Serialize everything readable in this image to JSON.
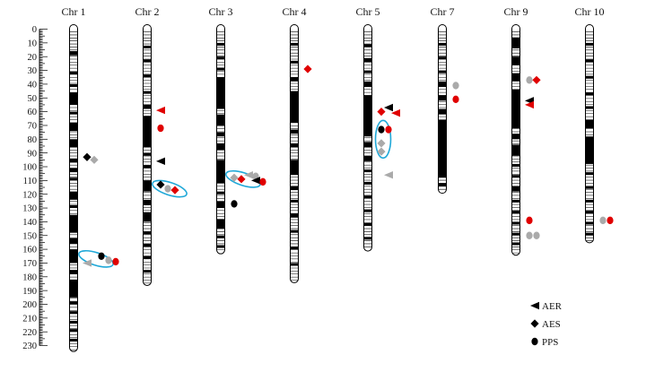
{
  "scale": {
    "min": 0,
    "max": 230,
    "step": 10,
    "labels": [
      "0",
      "10",
      "20",
      "30",
      "40",
      "50",
      "60",
      "70",
      "80",
      "90",
      "100",
      "110",
      "120",
      "130",
      "140",
      "150",
      "160",
      "170",
      "180",
      "190",
      "200",
      "210",
      "220",
      "230"
    ]
  },
  "colors": {
    "chromosome_outline": "#000000",
    "band": "#000000",
    "red": "#e00000",
    "black": "#000000",
    "gray": "#aaaaaa",
    "cluster_ring": "#1fa8d8"
  },
  "chromosomes": [
    {
      "name": "Chr 1",
      "length_cm": 233,
      "bands": [
        [
          16,
          19
        ],
        [
          31,
          33
        ],
        [
          40,
          42
        ],
        [
          46,
          55
        ],
        [
          60,
          62
        ],
        [
          68,
          74
        ],
        [
          80,
          86
        ],
        [
          94,
          97
        ],
        [
          101,
          104
        ],
        [
          108,
          110
        ],
        [
          118,
          124
        ],
        [
          128,
          130
        ],
        [
          135,
          148
        ],
        [
          152,
          156
        ],
        [
          160,
          170
        ],
        [
          175,
          178
        ],
        [
          182,
          195
        ],
        [
          198,
          200
        ],
        [
          205,
          207
        ],
        [
          212,
          214
        ],
        [
          218,
          220
        ],
        [
          225,
          227
        ]
      ]
    },
    {
      "name": "Chr 2",
      "length_cm": 185,
      "bands": [
        [
          12,
          14
        ],
        [
          22,
          24
        ],
        [
          33,
          35
        ],
        [
          45,
          47
        ],
        [
          55,
          58
        ],
        [
          63,
          86
        ],
        [
          90,
          92
        ],
        [
          99,
          101
        ],
        [
          110,
          118
        ],
        [
          124,
          128
        ],
        [
          133,
          140
        ],
        [
          147,
          149
        ],
        [
          156,
          158
        ],
        [
          165,
          167
        ],
        [
          175,
          177
        ]
      ]
    },
    {
      "name": "Chr 3",
      "length_cm": 162,
      "bands": [
        [
          10,
          12
        ],
        [
          20,
          22
        ],
        [
          28,
          30
        ],
        [
          35,
          58
        ],
        [
          62,
          70
        ],
        [
          75,
          78
        ],
        [
          83,
          88
        ],
        [
          95,
          112
        ],
        [
          118,
          120
        ],
        [
          125,
          130
        ],
        [
          138,
          145
        ],
        [
          150,
          152
        ],
        [
          157,
          159
        ]
      ]
    },
    {
      "name": "Chr 4",
      "length_cm": 183,
      "bands": [
        [
          10,
          12
        ],
        [
          23,
          25
        ],
        [
          35,
          38
        ],
        [
          45,
          68
        ],
        [
          73,
          76
        ],
        [
          83,
          86
        ],
        [
          95,
          106
        ],
        [
          114,
          117
        ],
        [
          124,
          126
        ],
        [
          134,
          137
        ],
        [
          146,
          148
        ],
        [
          158,
          160
        ],
        [
          170,
          172
        ]
      ]
    },
    {
      "name": "Chr 5",
      "length_cm": 160,
      "bands": [
        [
          11,
          13
        ],
        [
          21,
          24
        ],
        [
          30,
          32
        ],
        [
          38,
          42
        ],
        [
          48,
          78
        ],
        [
          82,
          86
        ],
        [
          92,
          96
        ],
        [
          102,
          104
        ],
        [
          111,
          113
        ],
        [
          121,
          123
        ],
        [
          131,
          133
        ],
        [
          141,
          143
        ],
        [
          151,
          153
        ]
      ]
    },
    {
      "name": "Chr 7",
      "length_cm": 118,
      "bands": [
        [
          10,
          12
        ],
        [
          20,
          22
        ],
        [
          30,
          32
        ],
        [
          38,
          42
        ],
        [
          48,
          52
        ],
        [
          58,
          62
        ],
        [
          66,
          108
        ],
        [
          112,
          114
        ]
      ]
    },
    {
      "name": "Chr 9",
      "length_cm": 163,
      "bands": [
        [
          6,
          14
        ],
        [
          20,
          26
        ],
        [
          32,
          38
        ],
        [
          44,
          72
        ],
        [
          76,
          80
        ],
        [
          84,
          92
        ],
        [
          98,
          100
        ],
        [
          106,
          108
        ],
        [
          114,
          118
        ],
        [
          124,
          126
        ],
        [
          132,
          134
        ],
        [
          140,
          142
        ],
        [
          148,
          150
        ],
        [
          155,
          157
        ]
      ]
    },
    {
      "name": "Chr 10",
      "length_cm": 154,
      "bands": [
        [
          10,
          12
        ],
        [
          22,
          24
        ],
        [
          34,
          36
        ],
        [
          46,
          48
        ],
        [
          56,
          58
        ],
        [
          66,
          72
        ],
        [
          78,
          98
        ],
        [
          104,
          106
        ],
        [
          114,
          116
        ],
        [
          124,
          126
        ],
        [
          132,
          134
        ],
        [
          140,
          142
        ],
        [
          148,
          150
        ]
      ]
    }
  ],
  "markers": [
    {
      "chr": 0,
      "pos": 93,
      "shape": "diamond",
      "color": "black",
      "side": 1
    },
    {
      "chr": 0,
      "pos": 95,
      "shape": "diamond",
      "color": "gray",
      "side": 2
    },
    {
      "chr": 0,
      "pos": 165,
      "shape": "circle",
      "color": "black",
      "side": 3
    },
    {
      "chr": 0,
      "pos": 168,
      "shape": "circle",
      "color": "gray",
      "side": 4
    },
    {
      "chr": 0,
      "pos": 169,
      "shape": "circle",
      "color": "red",
      "side": 5
    },
    {
      "chr": 0,
      "pos": 170,
      "shape": "triangle",
      "color": "gray",
      "side": 1
    },
    {
      "chr": 1,
      "pos": 59,
      "shape": "triangle",
      "color": "red",
      "side": 1
    },
    {
      "chr": 1,
      "pos": 72,
      "shape": "circle",
      "color": "red",
      "side": 1
    },
    {
      "chr": 1,
      "pos": 96,
      "shape": "triangle",
      "color": "black",
      "side": 1
    },
    {
      "chr": 1,
      "pos": 113,
      "shape": "diamond",
      "color": "black",
      "side": 1
    },
    {
      "chr": 1,
      "pos": 116,
      "shape": "circle",
      "color": "gray",
      "side": 2
    },
    {
      "chr": 1,
      "pos": 117,
      "shape": "diamond",
      "color": "red",
      "side": 3
    },
    {
      "chr": 2,
      "pos": 108,
      "shape": "diamond",
      "color": "gray",
      "side": 1
    },
    {
      "chr": 2,
      "pos": 109,
      "shape": "diamond",
      "color": "red",
      "side": 2
    },
    {
      "chr": 2,
      "pos": 106,
      "shape": "triangle",
      "color": "gray",
      "side": 3
    },
    {
      "chr": 2,
      "pos": 107,
      "shape": "circle",
      "color": "gray",
      "side": 4
    },
    {
      "chr": 2,
      "pos": 110,
      "shape": "triangle",
      "color": "black",
      "side": 4
    },
    {
      "chr": 2,
      "pos": 111,
      "shape": "circle",
      "color": "red",
      "side": 5
    },
    {
      "chr": 2,
      "pos": 127,
      "shape": "circle",
      "color": "black",
      "side": 1
    },
    {
      "chr": 3,
      "pos": 29,
      "shape": "diamond",
      "color": "red",
      "side": 1
    },
    {
      "chr": 4,
      "pos": 60,
      "shape": "diamond",
      "color": "red",
      "side": 1
    },
    {
      "chr": 4,
      "pos": 57,
      "shape": "triangle",
      "color": "black",
      "side": 2
    },
    {
      "chr": 4,
      "pos": 61,
      "shape": "triangle",
      "color": "red",
      "side": 3
    },
    {
      "chr": 4,
      "pos": 73,
      "shape": "circle",
      "color": "black",
      "side": 1
    },
    {
      "chr": 4,
      "pos": 73,
      "shape": "circle",
      "color": "red",
      "side": 2
    },
    {
      "chr": 4,
      "pos": 83,
      "shape": "diamond",
      "color": "gray",
      "side": 1
    },
    {
      "chr": 4,
      "pos": 89,
      "shape": "diamond",
      "color": "gray",
      "side": 1
    },
    {
      "chr": 4,
      "pos": 106,
      "shape": "triangle",
      "color": "gray",
      "side": 2
    },
    {
      "chr": 5,
      "pos": 41,
      "shape": "circle",
      "color": "gray",
      "side": 1
    },
    {
      "chr": 5,
      "pos": 51,
      "shape": "circle",
      "color": "red",
      "side": 1
    },
    {
      "chr": 6,
      "pos": 37,
      "shape": "circle",
      "color": "gray",
      "side": 1
    },
    {
      "chr": 6,
      "pos": 37,
      "shape": "diamond",
      "color": "red",
      "side": 2
    },
    {
      "chr": 6,
      "pos": 52,
      "shape": "triangle",
      "color": "black",
      "side": 1
    },
    {
      "chr": 6,
      "pos": 55,
      "shape": "triangle",
      "color": "red",
      "side": 1
    },
    {
      "chr": 6,
      "pos": 139,
      "shape": "circle",
      "color": "red",
      "side": 1
    },
    {
      "chr": 6,
      "pos": 150,
      "shape": "circle",
      "color": "gray",
      "side": 1
    },
    {
      "chr": 6,
      "pos": 150,
      "shape": "circle",
      "color": "gray",
      "side": 2
    },
    {
      "chr": 7,
      "pos": 139,
      "shape": "circle",
      "color": "gray",
      "side": 1
    },
    {
      "chr": 7,
      "pos": 139,
      "shape": "circle",
      "color": "red",
      "side": 2
    }
  ],
  "clusters": [
    {
      "chr": 0,
      "pos": 167
    },
    {
      "chr": 1,
      "pos": 116
    },
    {
      "chr": 2,
      "pos": 109
    },
    {
      "chr": 4,
      "pos": 80
    }
  ],
  "legend": [
    {
      "shape": "triangle",
      "label": "AER"
    },
    {
      "shape": "diamond",
      "label": "AES"
    },
    {
      "shape": "circle",
      "label": "PPS"
    }
  ]
}
